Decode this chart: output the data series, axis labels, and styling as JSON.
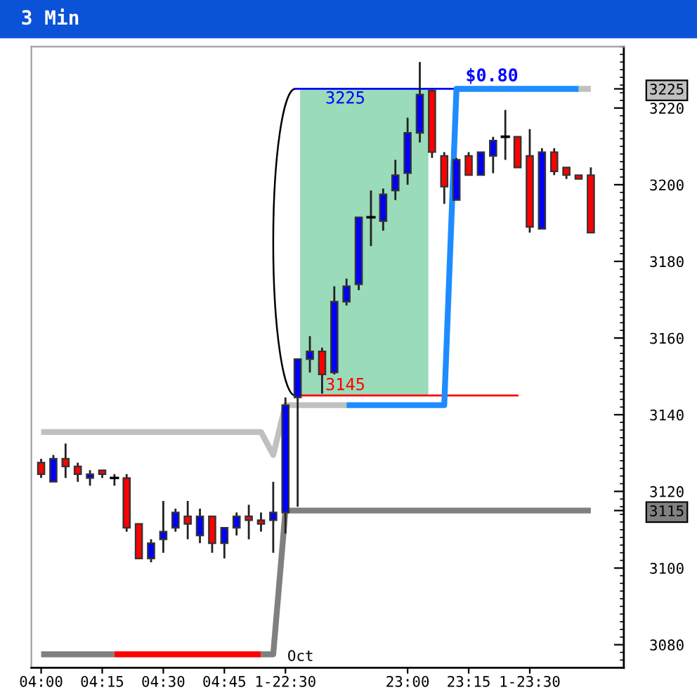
{
  "chart_data": {
    "type": "candlestick",
    "title": "3 Min",
    "categories": [
      "04:00",
      null,
      null,
      null,
      null,
      "04:15",
      null,
      null,
      null,
      null,
      "04:30",
      null,
      null,
      null,
      null,
      "04:45",
      null,
      null,
      null,
      null,
      "1-22:30",
      null,
      null,
      null,
      null,
      null,
      null,
      null,
      null,
      null,
      "23:00",
      null,
      null,
      null,
      null,
      "23:15",
      null,
      null,
      null,
      null,
      "1-23:30",
      null,
      null,
      null,
      null,
      null
    ],
    "ohlc": [
      [
        3127.5,
        3128.5,
        3123.5,
        3124.5
      ],
      [
        3122.5,
        3129.5,
        3122.5,
        3128.5
      ],
      [
        3128.5,
        3132.5,
        3123.5,
        3126.5
      ],
      [
        3126.5,
        3127.5,
        3122.5,
        3124.5
      ],
      [
        3123.5,
        3125.5,
        3121.5,
        3124.5
      ],
      [
        3125.5,
        3125.5,
        3123.5,
        3124.5
      ],
      [
        3123.5,
        3124.5,
        3121.5,
        3123.5
      ],
      [
        3123.5,
        3124.5,
        3109.5,
        3110.5
      ],
      [
        3111.5,
        3111.5,
        3102.5,
        3102.5
      ],
      [
        3102.5,
        3107.5,
        3101.5,
        3106.5
      ],
      [
        3107.5,
        3117.5,
        3104,
        3109.5
      ],
      [
        3110.5,
        3115.5,
        3109.5,
        3114.5
      ],
      [
        3113.5,
        3117.5,
        3107.5,
        3111.5
      ],
      [
        3108.5,
        3115.5,
        3106.5,
        3113.5
      ],
      [
        3113.5,
        3113.5,
        3104,
        3106.5
      ],
      [
        3106.5,
        3110.5,
        3102.5,
        3110.5
      ],
      [
        3110.5,
        3114.5,
        3108.5,
        3113.5
      ],
      [
        3113.5,
        3116.5,
        3107.5,
        3112.5
      ],
      [
        3112.5,
        3114.5,
        3109.5,
        3111.5
      ],
      [
        3112.5,
        3122.5,
        3104,
        3114.5
      ],
      [
        3114.5,
        3144.5,
        3109,
        3142.5
      ],
      [
        3144.5,
        3154.5,
        3116,
        3154.5
      ],
      [
        3154.5,
        3160.5,
        3151,
        3156.5
      ],
      [
        3156.5,
        3157.5,
        3145.5,
        3150.5
      ],
      [
        3151,
        3173.5,
        3150.5,
        3169.5
      ],
      [
        3169.5,
        3175.5,
        3168.5,
        3173.5
      ],
      [
        3174,
        3191.5,
        3172.5,
        3191.5
      ],
      [
        3191.5,
        3198.5,
        3184,
        3191.5
      ],
      [
        3190.5,
        3199,
        3188,
        3197.5
      ],
      [
        3198.5,
        3206.5,
        3196,
        3202.5
      ],
      [
        3203,
        3217.5,
        3200,
        3213.5
      ],
      [
        3213.5,
        3232,
        3211,
        3223.5
      ],
      [
        3224.5,
        3225,
        3207,
        3208.5
      ],
      [
        3207.5,
        3208.5,
        3195,
        3199.5
      ],
      [
        3196,
        3207,
        3196,
        3206.5
      ],
      [
        3207.5,
        3208.5,
        3202.5,
        3202.5
      ],
      [
        3202.5,
        3208.5,
        3202.5,
        3208.5
      ],
      [
        3207.5,
        3212.5,
        3203,
        3211.5
      ],
      [
        3212.5,
        3219.5,
        3206.5,
        3212.5
      ],
      [
        3212.5,
        3212.5,
        3204.5,
        3204.5
      ],
      [
        3207.5,
        3214.5,
        3187.5,
        3189
      ],
      [
        3188.5,
        3209.5,
        3188.5,
        3208.5
      ],
      [
        3208.5,
        3209.5,
        3202.5,
        3203.5
      ],
      [
        3204.5,
        3204.5,
        3201.5,
        3202.5
      ],
      [
        3202.5,
        3202.5,
        3201.5,
        3201.5
      ],
      [
        3202.5,
        3204.5,
        3187.5,
        3187.5
      ]
    ],
    "colors": [
      "#ff0000",
      "#0000ff",
      "#ff0000",
      "#ff0000",
      "#0000ff",
      "#ff0000",
      "#000000",
      "#ff0000",
      "#ff0000",
      "#0000ff",
      "#0000ff",
      "#0000ff",
      "#ff0000",
      "#0000ff",
      "#ff0000",
      "#0000ff",
      "#0000ff",
      "#ff0000",
      "#ff0000",
      "#0000ff",
      "#0000ff",
      "#0000ff",
      "#0000ff",
      "#ff0000",
      "#0000ff",
      "#0000ff",
      "#0000ff",
      "#000000",
      "#0000ff",
      "#0000ff",
      "#0000ff",
      "#0000ff",
      "#ff0000",
      "#ff0000",
      "#0000ff",
      "#ff0000",
      "#0000ff",
      "#0000ff",
      "#000000",
      "#ff0000",
      "#ff0000",
      "#0000ff",
      "#ff0000",
      "#ff0000",
      "#ff0000",
      "#ff0000"
    ],
    "series": [
      {
        "type": "line",
        "color": "#c0c0c0",
        "values": [
          3135.5,
          3135.5,
          3135.5,
          3135.5,
          3135.5,
          3135.5,
          3135.5,
          3135.5,
          3135.5,
          3135.5,
          3135.5,
          3135.5,
          3135.5,
          3135.5,
          3135.5,
          3135.5,
          3135.5,
          3135.5,
          3135.5,
          3129.5,
          3142.5,
          3142.5,
          3142.5,
          3142.5,
          3142.5,
          3142.5,
          null,
          null,
          null,
          null,
          null,
          null,
          null,
          null,
          null,
          null,
          null,
          null,
          null,
          null,
          null,
          null,
          null,
          null,
          3225,
          3225
        ]
      },
      {
        "type": "line",
        "color": "#1e8cff",
        "values": [
          null,
          null,
          null,
          null,
          null,
          null,
          null,
          null,
          null,
          null,
          null,
          null,
          null,
          null,
          null,
          null,
          null,
          null,
          null,
          null,
          null,
          null,
          null,
          null,
          null,
          3142.5,
          3142.5,
          3142.5,
          3142.5,
          3142.5,
          3142.5,
          3142.5,
          3142.5,
          3142.5,
          3225,
          3225,
          3225,
          3225,
          3225,
          3225,
          3225,
          3225,
          3225,
          3225,
          3225,
          null
        ]
      },
      {
        "type": "line",
        "color": "#808080",
        "values": [
          3077.5,
          3077.5,
          3077.5,
          3077.5,
          3077.5,
          3077.5,
          3077.5,
          null,
          null,
          null,
          null,
          null,
          null,
          null,
          null,
          null,
          null,
          null,
          3077.5,
          3077.5,
          3115,
          3115,
          3115,
          3115,
          3115,
          3115,
          3115,
          3115,
          3115,
          3115,
          3115,
          3115,
          3115,
          3115,
          3115,
          3115,
          3115,
          3115,
          3115,
          3115,
          3115,
          3115,
          3115,
          3115,
          3115,
          3115
        ]
      },
      {
        "type": "line",
        "color": "#ff0000",
        "values": [
          null,
          null,
          null,
          null,
          null,
          null,
          3077.5,
          3077.5,
          3077.5,
          3077.5,
          3077.5,
          3077.5,
          3077.5,
          3077.5,
          3077.5,
          3077.5,
          3077.5,
          3077.5,
          3077.5,
          null,
          null,
          null,
          null,
          null,
          null,
          null,
          null,
          null,
          null,
          null,
          null,
          null,
          null,
          null,
          null,
          null,
          null,
          null,
          null,
          null,
          null,
          null,
          null,
          null,
          null,
          null
        ]
      }
    ],
    "ylim": [
      3074,
      3236
    ],
    "yticks": [
      3080,
      3100,
      3115,
      3120,
      3140,
      3160,
      3180,
      3200,
      3220,
      3225
    ],
    "ref_lines": [
      {
        "axis": "y",
        "value": 3225,
        "label": "3225",
        "color": "#0000ff"
      },
      {
        "axis": "y",
        "value": 3145,
        "label": "3145",
        "color": "#ff0000"
      }
    ],
    "bands": [
      {
        "axis": "y",
        "from": 3145,
        "to": 3225,
        "label": "$0.80",
        "color": "#9adbb9"
      }
    ],
    "annotations": [
      "Oct"
    ]
  }
}
